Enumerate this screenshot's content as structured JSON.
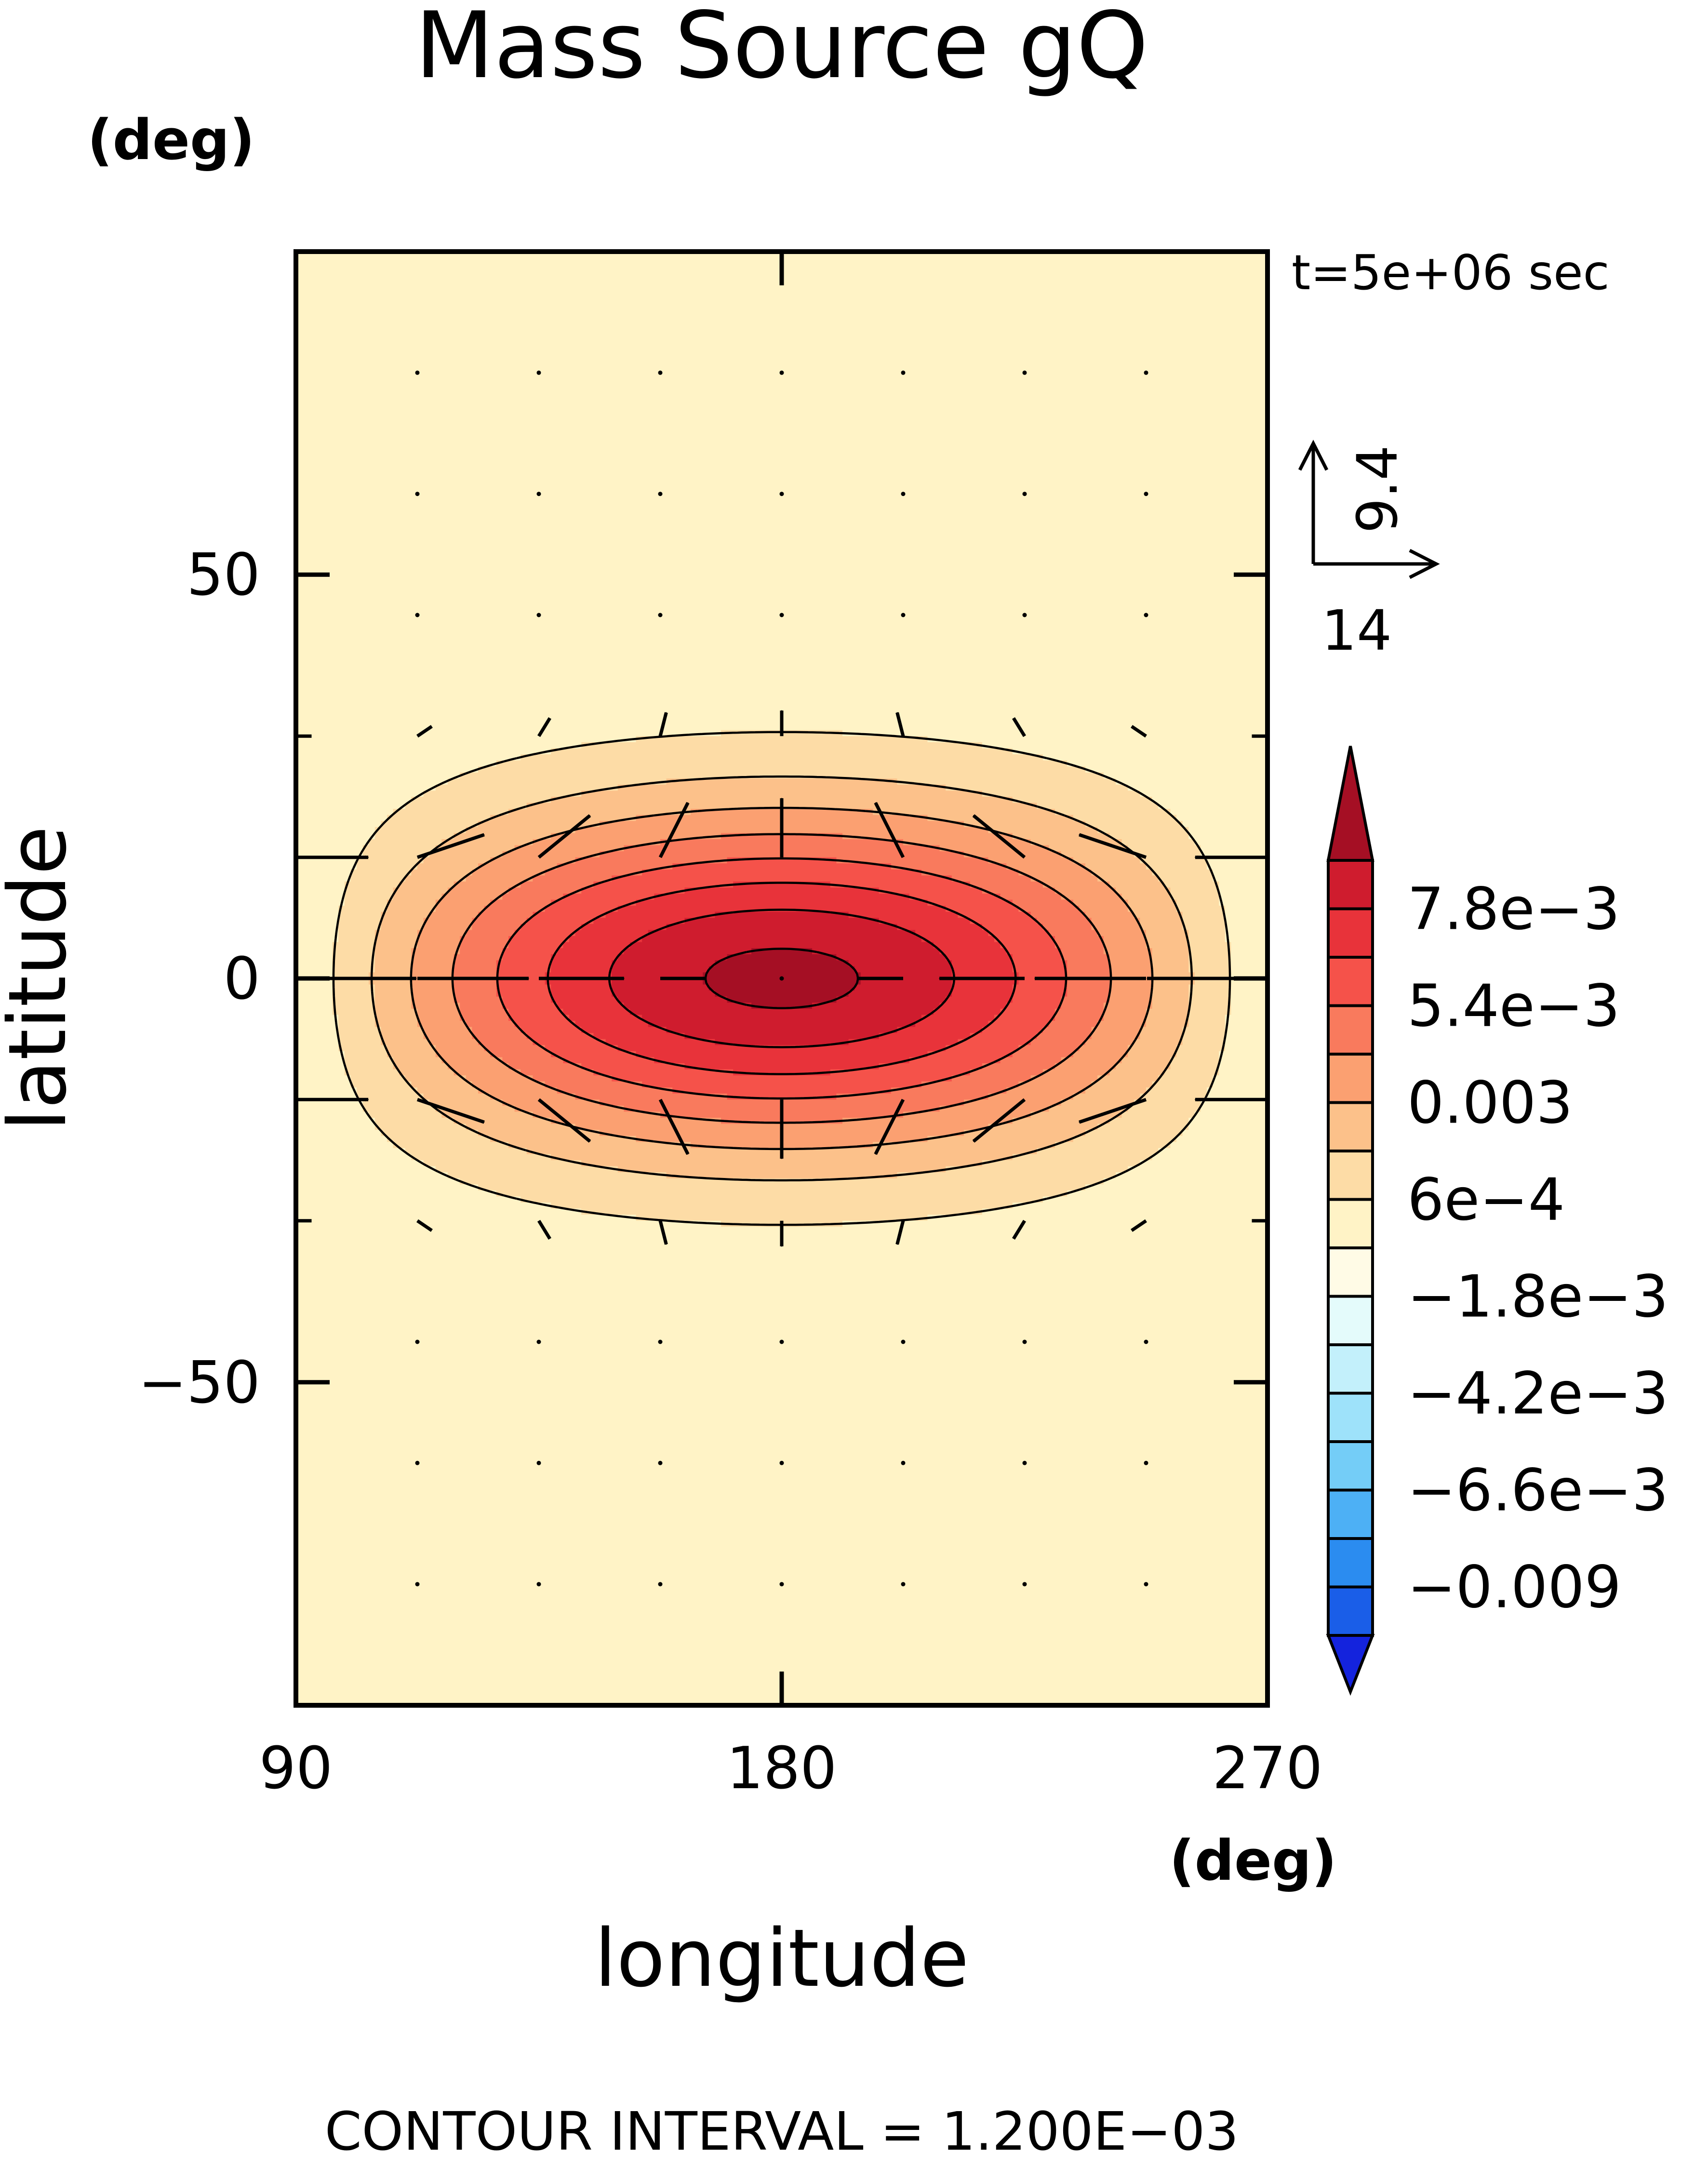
{
  "chart_data": {
    "type": "heatmap",
    "title": "Mass Source gQ",
    "time_label": "t=5e+06 sec",
    "xlabel": "longitude",
    "ylabel": "latitude",
    "x_unit": "(deg)",
    "y_unit": "(deg)",
    "xlim": [
      90,
      270
    ],
    "ylim": [
      -90,
      90
    ],
    "x_ticks": [
      90,
      180,
      270
    ],
    "y_ticks": [
      -50,
      0,
      50
    ],
    "x_tick_labels": [
      "90",
      "180",
      "270"
    ],
    "y_tick_labels": [
      "−50",
      "0",
      "50"
    ],
    "contour_interval_label": "CONTOUR INTERVAL = 1.200E−03",
    "contour_interval": 0.0012,
    "field": {
      "form": "amplitude * cos(longitude - 180) * exp(-(latitude/width)^2)",
      "amplitude": 0.0099,
      "width_deg": 21
    },
    "legend": {
      "placement": "right",
      "labels": [
        "7.8e−3",
        "5.4e−3",
        "0.003",
        "6e−4",
        "−1.8e−3",
        "−4.2e−3",
        "−6.6e−3",
        "−0.009"
      ],
      "label_values": [
        0.0078,
        0.0054,
        0.003,
        0.0006,
        -0.0018,
        -0.0042,
        -0.0066,
        -0.009
      ],
      "bins_top_to_bottom": [
        {
          "range": "> 0.0096",
          "color": "#a50f24"
        },
        {
          "range": "0.0084 – 0.0096",
          "color": "#cf1c2e"
        },
        {
          "range": "0.0072 – 0.0084",
          "color": "#e8333a"
        },
        {
          "range": "0.0060 – 0.0072",
          "color": "#f5524a"
        },
        {
          "range": "0.0048 – 0.0060",
          "color": "#f97a5d"
        },
        {
          "range": "0.0036 – 0.0048",
          "color": "#fba071"
        },
        {
          "range": "0.0024 – 0.0036",
          "color": "#fcc18a"
        },
        {
          "range": "0.0012 – 0.0024",
          "color": "#fddca6"
        },
        {
          "range": "0.0000 – 0.0012",
          "color": "#fff3c6"
        },
        {
          "range": "-0.0012 – 0.0000",
          "color": "#fffbe6"
        },
        {
          "range": "-0.0024 – -0.0012",
          "color": "#e4fbfb"
        },
        {
          "range": "-0.0036 – -0.0024",
          "color": "#c3f0fb"
        },
        {
          "range": "-0.0048 – -0.0036",
          "color": "#9ee2fa"
        },
        {
          "range": "-0.0060 – -0.0048",
          "color": "#74cdf7"
        },
        {
          "range": "-0.0072 – -0.0060",
          "color": "#4db0f5"
        },
        {
          "range": "-0.0084 – -0.0072",
          "color": "#2b8cf0"
        },
        {
          "range": "-0.0096 – -0.0084",
          "color": "#1a5ee8"
        },
        {
          "range": "< -0.0096",
          "color": "#1423dd"
        }
      ]
    },
    "reference_vector": {
      "x_label": "14",
      "y_label": "9.4",
      "u": 14,
      "v": 9.4
    },
    "vectors": {
      "description": "divergent flow from positive source (180) toward sinks (90, 270)",
      "grid_lon": [
        90,
        112.5,
        135,
        157.5,
        180,
        202.5,
        225,
        247.5,
        270
      ],
      "grid_lat": [
        75,
        60,
        45,
        30,
        15,
        0,
        -15,
        -30,
        -45,
        -60,
        -75
      ],
      "u_scale": 14,
      "v_scale": 9.4
    }
  }
}
